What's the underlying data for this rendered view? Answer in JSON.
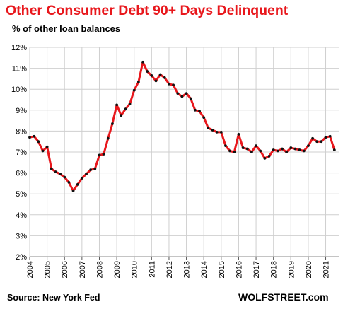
{
  "chart_data": {
    "type": "line",
    "title": "Other Consumer  Debt 90+ Days Delinquent",
    "subtitle": "% of other loan balances",
    "ylabel": "",
    "xlabel": "",
    "ylim": [
      2,
      12
    ],
    "xlim": [
      2004,
      2021.75
    ],
    "y_ticks": [
      2,
      3,
      4,
      5,
      6,
      7,
      8,
      9,
      10,
      11,
      12
    ],
    "y_tick_labels": [
      "2%",
      "3%",
      "4%",
      "5%",
      "6%",
      "7%",
      "8%",
      "9%",
      "10%",
      "11%",
      "12%"
    ],
    "x_ticks": [
      2004,
      2005,
      2006,
      2007,
      2008,
      2009,
      2010,
      2011,
      2012,
      2013,
      2014,
      2015,
      2016,
      2017,
      2018,
      2019,
      2020,
      2021
    ],
    "x_tick_labels": [
      "2004",
      "2005",
      "2006",
      "2007",
      "2008",
      "2009",
      "2010",
      "2011",
      "2012",
      "2013",
      "2014",
      "2015",
      "2016",
      "2017",
      "2018",
      "2019",
      "2020",
      "2021"
    ],
    "grid": true,
    "line_color": "#e8171c",
    "marker_color": "#111111",
    "series": [
      {
        "x": [
          2004.0,
          2004.25,
          2004.5,
          2004.75,
          2005.0,
          2005.25,
          2005.5,
          2005.75,
          2006.0,
          2006.25,
          2006.5,
          2006.75,
          2007.0,
          2007.25,
          2007.5,
          2007.75,
          2008.0,
          2008.25,
          2008.5,
          2008.75,
          2009.0,
          2009.25,
          2009.5,
          2009.75,
          2010.0,
          2010.25,
          2010.5,
          2010.75,
          2011.0,
          2011.25,
          2011.5,
          2011.75,
          2012.0,
          2012.25,
          2012.5,
          2012.75,
          2013.0,
          2013.25,
          2013.5,
          2013.75,
          2014.0,
          2014.25,
          2014.5,
          2014.75,
          2015.0,
          2015.25,
          2015.5,
          2015.75,
          2016.0,
          2016.25,
          2016.5,
          2016.75,
          2017.0,
          2017.25,
          2017.5,
          2017.75,
          2018.0,
          2018.25,
          2018.5,
          2018.75,
          2019.0,
          2019.25,
          2019.5,
          2019.75,
          2020.0,
          2020.25,
          2020.5,
          2020.75,
          2021.0,
          2021.25,
          2021.5
        ],
        "values": [
          7.7,
          7.75,
          7.5,
          7.05,
          7.25,
          6.2,
          6.05,
          5.95,
          5.8,
          5.55,
          5.15,
          5.45,
          5.75,
          5.95,
          6.15,
          6.2,
          6.85,
          6.9,
          7.65,
          8.35,
          9.25,
          8.75,
          9.05,
          9.3,
          9.95,
          10.35,
          11.3,
          10.85,
          10.65,
          10.4,
          10.7,
          10.55,
          10.25,
          10.2,
          9.8,
          9.65,
          9.8,
          9.55,
          9.0,
          8.95,
          8.65,
          8.15,
          8.05,
          7.95,
          7.95,
          7.3,
          7.05,
          7.0,
          7.85,
          7.2,
          7.15,
          7.0,
          7.3,
          7.05,
          6.7,
          6.8,
          7.1,
          7.05,
          7.15,
          7.0,
          7.2,
          7.15,
          7.1,
          7.05,
          7.3,
          7.65,
          7.5,
          7.5,
          7.7,
          7.75,
          7.1
        ]
      }
    ]
  },
  "footer": {
    "source": "Source: New York Fed",
    "brand": "WOLFSTREET.com"
  }
}
